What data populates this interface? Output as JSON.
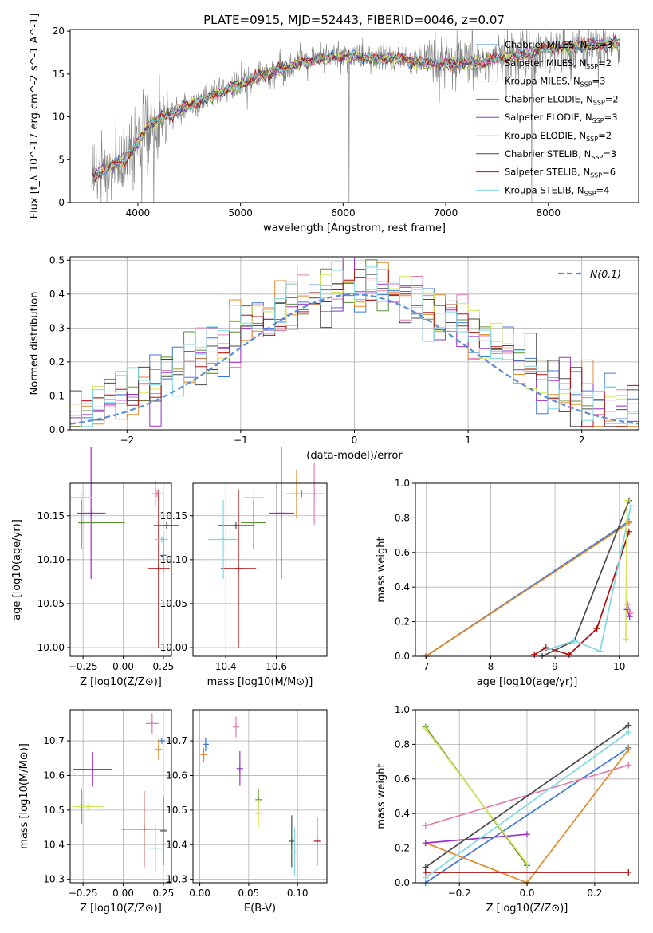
{
  "figure": {
    "title": "PLATE=0915, MJD=52443, FIBERID=0046, z=0.07"
  },
  "series_styles": [
    {
      "name": "Chabrier MILES",
      "nssp": "3",
      "color": "#3c78d8"
    },
    {
      "name": "Salpeter MILES",
      "nssp": "2",
      "color": "#e07fb0"
    },
    {
      "name": "Kroupa MILES",
      "nssp": "3",
      "color": "#e08a2c"
    },
    {
      "name": "Chabrier ELODIE",
      "nssp": "2",
      "color": "#5f8f3a"
    },
    {
      "name": "Salpeter ELODIE",
      "nssp": "3",
      "color": "#9b30c8"
    },
    {
      "name": "Kroupa ELODIE",
      "nssp": "2",
      "color": "#d6e65a"
    },
    {
      "name": "Chabrier STELIB",
      "nssp": "3",
      "color": "#4a4a4a"
    },
    {
      "name": "Salpeter STELIB",
      "nssp": "6",
      "color": "#b01010"
    },
    {
      "name": "Kroupa STELIB",
      "nssp": "4",
      "color": "#7fd8e0"
    }
  ],
  "chart_data": [
    {
      "id": "spectrum",
      "type": "line",
      "xlabel": "wavelength [Angstrom, rest frame]",
      "ylabel": "Flux [f_λ 10^-17 erg cm^-2 s^-1 A^-1]",
      "xlim": [
        3340,
        8880
      ],
      "ylim": [
        0,
        20.2
      ],
      "xticks": [
        4000,
        5000,
        6000,
        7000,
        8000
      ],
      "yticks": [
        0,
        5,
        10,
        15,
        20
      ],
      "legend": "top-right",
      "data_color": "#808080",
      "continuum_anchors": {
        "x": [
          3550,
          3700,
          3900,
          4000,
          4100,
          4300,
          4500,
          4800,
          5000,
          5200,
          5500,
          5800,
          6000,
          6300,
          6560,
          6700,
          7000,
          7300,
          7600,
          8000,
          8400,
          8700
        ],
        "y": [
          3.0,
          4.0,
          5.2,
          7.0,
          9.0,
          10.2,
          11.3,
          12.8,
          13.8,
          14.8,
          16.0,
          16.8,
          17.2,
          16.8,
          16.8,
          16.4,
          16.1,
          16.3,
          17.0,
          18.0,
          18.4,
          18.6
        ]
      }
    },
    {
      "id": "residual-hist",
      "type": "histogram",
      "xlabel": "(data-model)/error",
      "ylabel": "Normed distribution",
      "xlim": [
        -2.5,
        2.5
      ],
      "ylim": [
        0,
        0.51
      ],
      "xticks": [
        -2,
        -1,
        0,
        1,
        2
      ],
      "yticks": [
        0.0,
        0.1,
        0.2,
        0.3,
        0.4,
        0.5
      ],
      "grid": true,
      "legend": "top-right",
      "gaussian_label": "N(0,1)",
      "gaussian_color": "#5b8ed6",
      "bins": {
        "start": -2.5,
        "width": 0.1,
        "count": 50
      }
    },
    {
      "id": "age-vs-Z",
      "type": "errorbar",
      "xlabel": "Z [log10(Z/Z⊙)]",
      "ylabel": "age [log10(age/yr)]",
      "xlim": [
        -0.33,
        0.3
      ],
      "ylim": [
        9.99,
        10.187
      ],
      "xticks": [
        -0.25,
        0.0,
        0.25
      ],
      "yticks": [
        10.0,
        10.05,
        10.1,
        10.15
      ],
      "grid": true,
      "points": [
        {
          "s": 0,
          "x": 0.25,
          "y": 10.105,
          "xerr": 0.0,
          "yerr": 0.02
        },
        {
          "s": 1,
          "x": 0.21,
          "y": 10.175,
          "xerr": 0.03,
          "yerr": 0.0
        },
        {
          "s": 2,
          "x": 0.2,
          "y": 10.175,
          "xerr": 0.0,
          "yerr": 0.015
        },
        {
          "s": 3,
          "x": -0.26,
          "y": 10.142,
          "xerr": 0.0,
          "yerr": 0.03
        },
        {
          "s": 4,
          "x": -0.2,
          "y": 10.153,
          "xerr": 0.09,
          "yerr": 0.075
        },
        {
          "s": 5,
          "x": -0.26,
          "y": 10.171,
          "xerr": 0.07,
          "yerr": 0.0
        },
        {
          "s": 6,
          "x": 0.27,
          "y": 10.139,
          "xerr": 0.08,
          "yerr": 0.0
        },
        {
          "s": 7,
          "x": 0.22,
          "y": 10.09,
          "xerr": 0.07,
          "yerr": 0.09
        },
        {
          "s": 8,
          "x": 0.24,
          "y": 10.123,
          "xerr": 0.04,
          "yerr": 0.0
        }
      ],
      "hbars": [
        {
          "s": 3,
          "x0": -0.28,
          "x1": 0.01,
          "y": 10.142
        }
      ]
    },
    {
      "id": "age-vs-mass",
      "type": "errorbar",
      "xlabel": "mass [log10(M/M⊙)]",
      "ylabel": "",
      "xlim": [
        10.27,
        10.8
      ],
      "ylim": [
        9.99,
        10.187
      ],
      "xticks": [
        10.4,
        10.6
      ],
      "yticks": [
        10.0,
        10.05,
        10.1,
        10.15
      ],
      "grid": true,
      "points": [
        {
          "s": 0,
          "x": 10.7,
          "y": 10.175,
          "xerr": 0.0,
          "yerr": 0.0
        },
        {
          "s": 1,
          "x": 10.75,
          "y": 10.175,
          "xerr": 0.04,
          "yerr": 0.035
        },
        {
          "s": 2,
          "x": 10.68,
          "y": 10.175,
          "xerr": 0.04,
          "yerr": 0.027
        },
        {
          "s": 3,
          "x": 10.51,
          "y": 10.142,
          "xerr": 0.05,
          "yerr": 0.03
        },
        {
          "s": 4,
          "x": 10.62,
          "y": 10.153,
          "xerr": 0.05,
          "yerr": 0.075
        },
        {
          "s": 5,
          "x": 10.51,
          "y": 10.171,
          "xerr": 0.04,
          "yerr": 0.0
        },
        {
          "s": 6,
          "x": 10.44,
          "y": 10.139,
          "xerr": 0.07,
          "yerr": 0.0
        },
        {
          "s": 7,
          "x": 10.45,
          "y": 10.09,
          "xerr": 0.07,
          "yerr": 0.09
        },
        {
          "s": 8,
          "x": 10.39,
          "y": 10.123,
          "xerr": 0.06,
          "yerr": 0.045
        }
      ]
    },
    {
      "id": "weight-vs-age",
      "type": "line",
      "xlabel": "age [log10(age/yr)]",
      "ylabel": "mass weight",
      "xlim": [
        6.83,
        10.3
      ],
      "ylim": [
        0,
        1.0
      ],
      "xticks": [
        7,
        8,
        9,
        10
      ],
      "yticks": [
        0.0,
        0.2,
        0.4,
        0.6,
        0.8,
        1.0
      ],
      "grid": true,
      "lines": [
        {
          "s": 0,
          "x": [
            6.99,
            10.15
          ],
          "y": [
            0.0,
            0.78
          ]
        },
        {
          "s": 2,
          "x": [
            6.99,
            10.15
          ],
          "y": [
            0.0,
            0.77
          ]
        },
        {
          "s": 6,
          "x": [
            8.8,
            9.3,
            10.15
          ],
          "y": [
            0.0,
            0.09,
            0.9
          ]
        },
        {
          "s": 7,
          "x": [
            8.68,
            8.86,
            9.22,
            9.65,
            10.15
          ],
          "y": [
            0.01,
            0.05,
            0.01,
            0.16,
            0.72
          ]
        },
        {
          "s": 8,
          "x": [
            8.9,
            9.3,
            9.7,
            10.18
          ],
          "y": [
            0.04,
            0.09,
            0.03,
            0.87
          ]
        },
        {
          "s": 5,
          "x": [
            10.1,
            10.12
          ],
          "y": [
            0.1,
            0.9
          ]
        },
        {
          "s": 4,
          "x": [
            10.12,
            10.16
          ],
          "y": [
            0.27,
            0.23
          ]
        },
        {
          "s": 1,
          "x": [
            10.13,
            10.17
          ],
          "y": [
            0.3,
            0.25
          ]
        }
      ]
    },
    {
      "id": "mass-vs-Z",
      "type": "errorbar",
      "xlabel": "Z [log10(Z/Z⊙)]",
      "ylabel": "mass [log10(M/M⊙)]",
      "xlim": [
        -0.33,
        0.3
      ],
      "ylim": [
        10.29,
        10.79
      ],
      "xticks": [
        -0.25,
        0.0,
        0.25
      ],
      "yticks": [
        10.3,
        10.4,
        10.5,
        10.6,
        10.7
      ],
      "grid": true,
      "points": [
        {
          "s": 0,
          "x": 0.24,
          "y": 10.7,
          "xerr": 0.02,
          "yerr": 0.0
        },
        {
          "s": 1,
          "x": 0.18,
          "y": 10.75,
          "xerr": 0.04,
          "yerr": 0.03
        },
        {
          "s": 2,
          "x": 0.22,
          "y": 10.675,
          "xerr": 0.02,
          "yerr": 0.03
        },
        {
          "s": 3,
          "x": -0.26,
          "y": 10.51,
          "xerr": 0.01,
          "yerr": 0.05
        },
        {
          "s": 4,
          "x": -0.19,
          "y": 10.618,
          "xerr": 0.12,
          "yerr": 0.05
        },
        {
          "s": 5,
          "x": -0.22,
          "y": 10.51,
          "xerr": 0.1,
          "yerr": 0.0
        },
        {
          "s": 6,
          "x": 0.25,
          "y": 10.44,
          "xerr": 0.0,
          "yerr": 0.1
        },
        {
          "s": 7,
          "x": 0.13,
          "y": 10.445,
          "xerr": 0.14,
          "yerr": 0.11
        },
        {
          "s": 8,
          "x": 0.2,
          "y": 10.39,
          "xerr": 0.05,
          "yerr": 0.07
        }
      ]
    },
    {
      "id": "mass-vs-ebv",
      "type": "errorbar",
      "xlabel": "E(B-V)",
      "ylabel": "",
      "xlim": [
        -0.007,
        0.13
      ],
      "ylim": [
        10.29,
        10.79
      ],
      "xticks": [
        0.0,
        0.05,
        0.1
      ],
      "yticks": [
        10.3,
        10.4,
        10.5,
        10.6,
        10.7
      ],
      "grid": true,
      "points": [
        {
          "s": 0,
          "x": 0.006,
          "y": 10.69,
          "xerr": 0.0,
          "yerr": 0.02
        },
        {
          "s": 1,
          "x": 0.037,
          "y": 10.74,
          "xerr": 0.0,
          "yerr": 0.03
        },
        {
          "s": 2,
          "x": 0.004,
          "y": 10.66,
          "xerr": 0.0,
          "yerr": 0.02
        },
        {
          "s": 3,
          "x": 0.06,
          "y": 10.53,
          "xerr": 0.0,
          "yerr": 0.03
        },
        {
          "s": 4,
          "x": 0.041,
          "y": 10.62,
          "xerr": 0.0,
          "yerr": 0.05
        },
        {
          "s": 5,
          "x": 0.06,
          "y": 10.49,
          "xerr": 0.0,
          "yerr": 0.04
        },
        {
          "s": 6,
          "x": 0.094,
          "y": 10.41,
          "xerr": 0.0,
          "yerr": 0.075
        },
        {
          "s": 7,
          "x": 0.12,
          "y": 10.41,
          "xerr": 0.0,
          "yerr": 0.07
        },
        {
          "s": 8,
          "x": 0.097,
          "y": 10.38,
          "xerr": 0.0,
          "yerr": 0.07
        }
      ]
    },
    {
      "id": "weight-vs-Z",
      "type": "line",
      "xlabel": "Z [log10(Z/Z⊙)]",
      "ylabel": "mass weight",
      "xlim": [
        -0.33,
        0.33
      ],
      "ylim": [
        0,
        1.0
      ],
      "xticks": [
        -0.2,
        0.0,
        0.2
      ],
      "yticks": [
        0.0,
        0.2,
        0.4,
        0.6,
        0.8,
        1.0
      ],
      "grid": true,
      "lines": [
        {
          "s": 0,
          "x": [
            -0.3,
            0.3
          ],
          "y": [
            0.0,
            0.78
          ]
        },
        {
          "s": 1,
          "x": [
            -0.3,
            0.3
          ],
          "y": [
            0.33,
            0.68
          ]
        },
        {
          "s": 2,
          "x": [
            -0.3,
            0.0,
            0.3
          ],
          "y": [
            0.23,
            0.0,
            0.77
          ]
        },
        {
          "s": 3,
          "x": [
            -0.3,
            0.0
          ],
          "y": [
            0.9,
            0.1
          ]
        },
        {
          "s": 4,
          "x": [
            -0.3,
            0.0
          ],
          "y": [
            0.23,
            0.28
          ]
        },
        {
          "s": 5,
          "x": [
            -0.3,
            0.0
          ],
          "y": [
            0.89,
            0.11
          ]
        },
        {
          "s": 6,
          "x": [
            -0.3,
            0.3
          ],
          "y": [
            0.09,
            0.91
          ]
        },
        {
          "s": 7,
          "x": [
            -0.3,
            0.3
          ],
          "y": [
            0.06,
            0.06
          ]
        },
        {
          "s": 8,
          "x": [
            -0.3,
            0.3
          ],
          "y": [
            0.03,
            0.87
          ]
        }
      ]
    }
  ]
}
